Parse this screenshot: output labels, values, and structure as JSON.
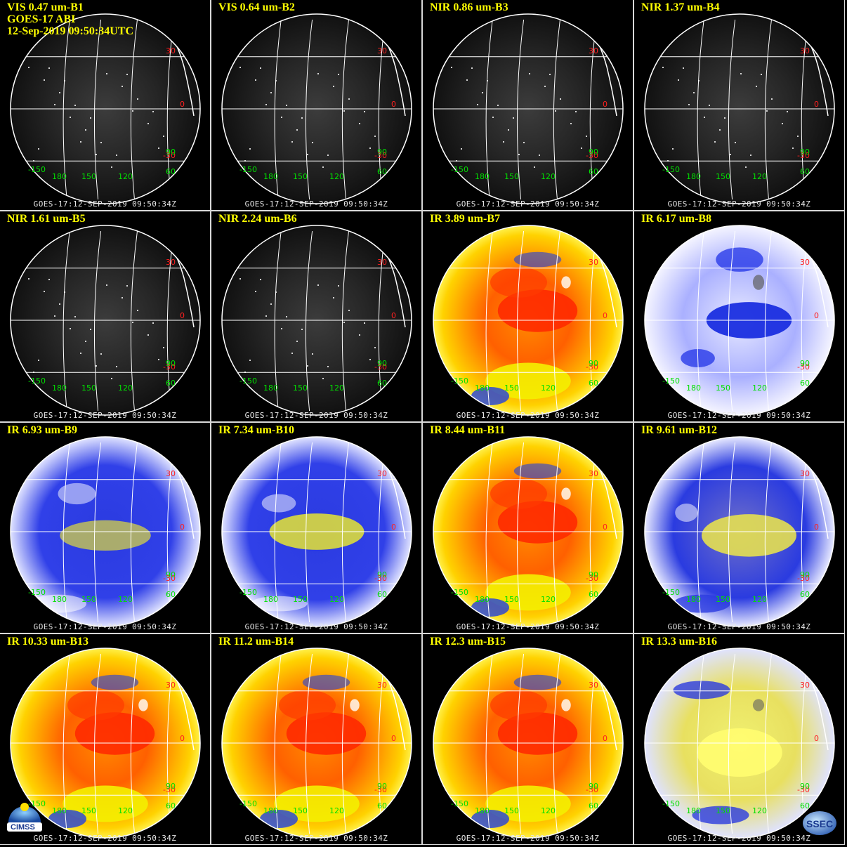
{
  "header": {
    "line1": "GOES-17 ABI",
    "line2": "12-Sep-2019 09:50:34UTC"
  },
  "footer_text": "GOES-17:12-SEP-2019 09:50:34Z",
  "lat_labels": [
    "30",
    "0",
    "-30"
  ],
  "lon_labels": [
    "-150",
    "180",
    "150",
    "120",
    "90",
    "60"
  ],
  "panels": [
    {
      "band": "VIS 0.47 um-B1",
      "style": "vis"
    },
    {
      "band": "VIS 0.64 um-B2",
      "style": "vis"
    },
    {
      "band": "NIR 0.86 um-B3",
      "style": "vis"
    },
    {
      "band": "NIR 1.37 um-B4",
      "style": "vis"
    },
    {
      "band": "NIR 1.61 um-B5",
      "style": "vis"
    },
    {
      "band": "NIR 2.24 um-B6",
      "style": "vis"
    },
    {
      "band": "IR 3.89 um-B7",
      "style": "warm"
    },
    {
      "band": "IR 6.17 um-B8",
      "style": "wv-light"
    },
    {
      "band": "IR 6.93 um-B9",
      "style": "wv"
    },
    {
      "band": "IR 7.34 um-B10",
      "style": "wv-yellow"
    },
    {
      "band": "IR 8.44 um-B11",
      "style": "warm"
    },
    {
      "band": "IR 9.61 um-B12",
      "style": "ozone"
    },
    {
      "band": "IR 10.33 um-B13",
      "style": "warm"
    },
    {
      "band": "IR 11.2 um-B14",
      "style": "warm"
    },
    {
      "band": "IR 12.3 um-B15",
      "style": "warm"
    },
    {
      "band": "IR 13.3 um-B16",
      "style": "co2"
    }
  ],
  "logos": {
    "left": "CIMSS",
    "right": "SSEC"
  },
  "colors": {
    "label": "#ffff00",
    "grid": "#ffffff",
    "lat_label": "#ff2020",
    "lon_label": "#00e000"
  }
}
